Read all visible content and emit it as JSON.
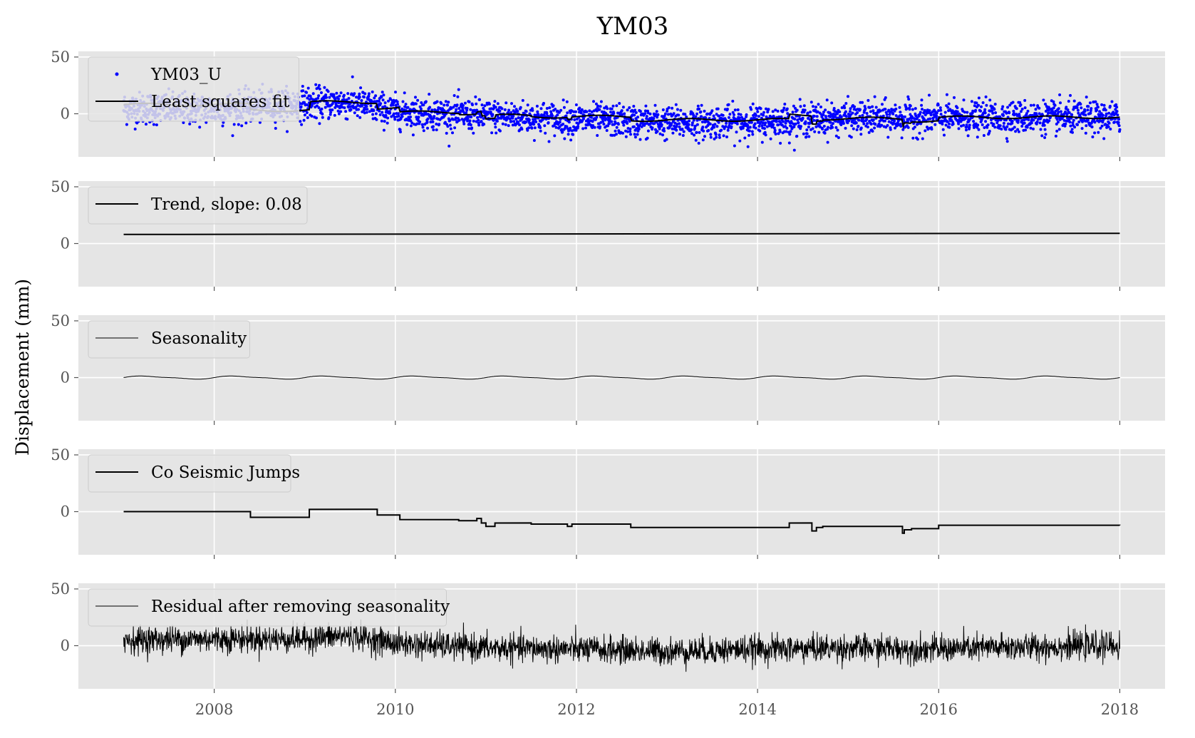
{
  "chart_data": {
    "type": "line",
    "title": "YM03",
    "ylabel": "Displacement (mm)",
    "xlabel": "",
    "xlim": [
      2006.5,
      2018.5
    ],
    "x_ticks": [
      2008,
      2010,
      2012,
      2014,
      2016,
      2018
    ],
    "x_tick_labels": [
      "2008",
      "2010",
      "2012",
      "2014",
      "2016",
      "2018"
    ],
    "y_ticks": [
      0,
      50
    ],
    "y_tick_labels": [
      "0",
      "50"
    ],
    "grid": true,
    "background": "#e5e5e5",
    "legend_position": "upper left",
    "panels": [
      {
        "ylim": [
          -38,
          55
        ],
        "series": [
          {
            "name": "YM03_U",
            "kind": "scatter",
            "color": "#0000ff",
            "description_points": "daily GPS vertical displacement, 2007.0-2018.0",
            "envelope": [
              [
                2007.0,
                5
              ],
              [
                2008.0,
                4
              ],
              [
                2009.0,
                9
              ],
              [
                2009.5,
                10
              ],
              [
                2010.0,
                2
              ],
              [
                2011.0,
                -2
              ],
              [
                2012.0,
                -5
              ],
              [
                2013.0,
                -8
              ],
              [
                2014.0,
                -7
              ],
              [
                2015.0,
                -4
              ],
              [
                2016.0,
                -4
              ],
              [
                2017.0,
                -3
              ],
              [
                2018.0,
                -4
              ]
            ],
            "scatter_sd": 7
          },
          {
            "name": "Least squares fit",
            "kind": "line",
            "color": "#000000"
          }
        ]
      },
      {
        "ylim": [
          -38,
          55
        ],
        "series": [
          {
            "name": "Trend, slope: 0.08",
            "kind": "line",
            "color": "#000000",
            "x": [
              2007.0,
              2018.0
            ],
            "y": [
              8,
              9
            ]
          }
        ]
      },
      {
        "ylim": [
          -38,
          55
        ],
        "series": [
          {
            "name": "Seasonality",
            "kind": "line",
            "color": "#000000",
            "amplitude": 1.2,
            "period_years": 1.0,
            "offset": 0
          }
        ]
      },
      {
        "ylim": [
          -38,
          55
        ],
        "series": [
          {
            "name": "Co Seismic Jumps",
            "kind": "step",
            "color": "#000000",
            "x": [
              2007.0,
              2008.4,
              2009.05,
              2009.8,
              2010.05,
              2010.7,
              2010.9,
              2010.95,
              2011.0,
              2011.1,
              2011.5,
              2011.9,
              2011.95,
              2012.0,
              2012.6,
              2014.35,
              2014.6,
              2014.65,
              2014.72,
              2015.6,
              2015.62,
              2015.7,
              2016.0,
              2018.0
            ],
            "y": [
              0,
              -5,
              2,
              -3,
              -7,
              -8,
              -6,
              -10,
              -13,
              -10,
              -11,
              -13,
              -11,
              -11,
              -14,
              -10,
              -17,
              -14,
              -13,
              -19,
              -16,
              -15,
              -12,
              -12
            ]
          }
        ]
      },
      {
        "ylim": [
          -38,
          55
        ],
        "series": [
          {
            "name": "Residual after removing seasonality",
            "kind": "line",
            "color": "#000000",
            "envelope": [
              [
                2007.0,
                5
              ],
              [
                2008.0,
                6
              ],
              [
                2009.0,
                6
              ],
              [
                2009.5,
                9
              ],
              [
                2010.0,
                2
              ],
              [
                2011.0,
                -2
              ],
              [
                2012.0,
                -3
              ],
              [
                2013.0,
                -5
              ],
              [
                2014.0,
                -3
              ],
              [
                2015.0,
                -2
              ],
              [
                2016.0,
                -3
              ],
              [
                2017.0,
                -1
              ],
              [
                2018.0,
                0
              ]
            ],
            "noise_sd": 6
          }
        ]
      }
    ]
  }
}
